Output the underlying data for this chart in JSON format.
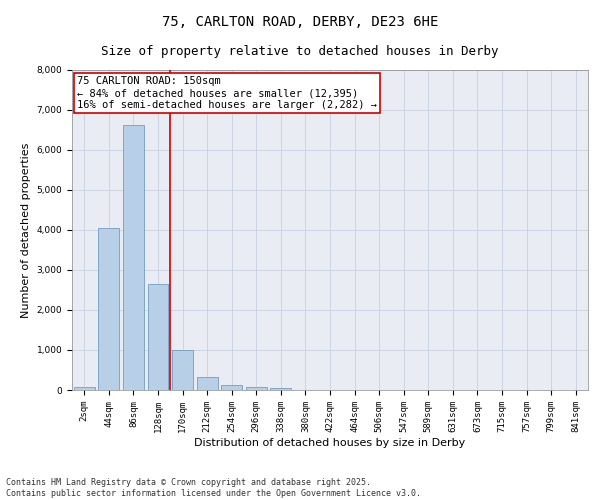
{
  "title_line1": "75, CARLTON ROAD, DERBY, DE23 6HE",
  "title_line2": "Size of property relative to detached houses in Derby",
  "xlabel": "Distribution of detached houses by size in Derby",
  "ylabel": "Number of detached properties",
  "categories": [
    "2sqm",
    "44sqm",
    "86sqm",
    "128sqm",
    "170sqm",
    "212sqm",
    "254sqm",
    "296sqm",
    "338sqm",
    "380sqm",
    "422sqm",
    "464sqm",
    "506sqm",
    "547sqm",
    "589sqm",
    "631sqm",
    "673sqm",
    "715sqm",
    "757sqm",
    "799sqm",
    "841sqm"
  ],
  "values": [
    80,
    4050,
    6620,
    2650,
    1000,
    330,
    130,
    80,
    60,
    0,
    0,
    0,
    0,
    0,
    0,
    0,
    0,
    0,
    0,
    0,
    0
  ],
  "bar_color": "#b8cfe8",
  "bar_edge_color": "#6090c0",
  "vline_x": 3.5,
  "vline_color": "#cc0000",
  "annotation_text": "75 CARLTON ROAD: 150sqm\n← 84% of detached houses are smaller (12,395)\n16% of semi-detached houses are larger (2,282) →",
  "annotation_box_color": "#ffffff",
  "annotation_box_edge_color": "#cc0000",
  "ylim": [
    0,
    8000
  ],
  "yticks": [
    0,
    1000,
    2000,
    3000,
    4000,
    5000,
    6000,
    7000,
    8000
  ],
  "grid_color": "#c8d0e0",
  "background_color": "#eaecf4",
  "footer_line1": "Contains HM Land Registry data © Crown copyright and database right 2025.",
  "footer_line2": "Contains public sector information licensed under the Open Government Licence v3.0.",
  "title_fontsize": 10,
  "subtitle_fontsize": 9,
  "tick_fontsize": 6.5,
  "ylabel_fontsize": 8,
  "xlabel_fontsize": 8,
  "annotation_fontsize": 7.5,
  "footer_fontsize": 6
}
